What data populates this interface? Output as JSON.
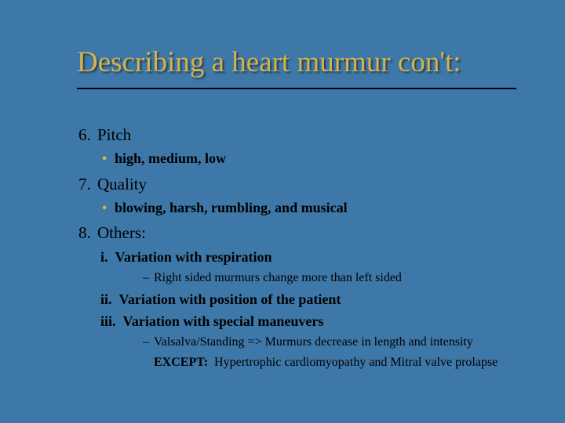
{
  "colors": {
    "background": "#3d78a8",
    "title": "#d6b24a",
    "bullet": "#d6b24a",
    "text": "#000000",
    "underline": "#000000"
  },
  "title": "Describing a heart murmur con't:",
  "items": {
    "i6": {
      "num": "6.",
      "label": "Pitch",
      "sub": "high, medium, low"
    },
    "i7": {
      "num": "7.",
      "label": "Quality",
      "sub": "blowing, harsh, rumbling, and musical"
    },
    "i8": {
      "num": "8.",
      "label": "Others:",
      "r1": {
        "num": "i.",
        "label": "Variation with respiration",
        "d1": "Right sided murmurs change more than left sided"
      },
      "r2": {
        "num": "ii.",
        "label": "Variation with position of the patient"
      },
      "r3": {
        "num": "iii.",
        "label": "Variation with special maneuvers",
        "d1": "Valsalva/Standing => Murmurs decrease in length and intensity",
        "except_label": "EXCEPT:",
        "except_text": "Hypertrophic cardiomyopathy and Mitral valve prolapse"
      }
    }
  }
}
